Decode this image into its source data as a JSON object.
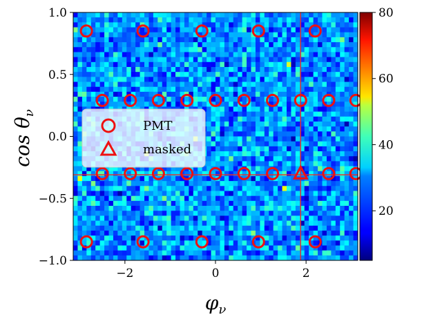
{
  "chart_data": {
    "type": "heatmap",
    "title": "",
    "xlabel": "φ_ν",
    "ylabel": "cos θ_ν",
    "xlabel_main": "φ",
    "xlabel_sub": "ν",
    "ylabel_main": "cos θ",
    "ylabel_sub": "ν",
    "xlim": [
      -3.14159,
      3.14159
    ],
    "ylim": [
      -1.0,
      1.0
    ],
    "xticks": [
      -2,
      0,
      2
    ],
    "xtick_labels": [
      "−2",
      "0",
      "2"
    ],
    "yticks": [
      1.0,
      0.5,
      0.0,
      -0.5,
      -1.0
    ],
    "ytick_labels": [
      "1.0",
      "0.5",
      "0.0",
      "−0.5",
      "−1.0"
    ],
    "colorbar": {
      "range": [
        5,
        80
      ],
      "ticks": [
        20,
        40,
        60,
        80
      ],
      "tick_labels": [
        "20",
        "40",
        "60",
        "80"
      ],
      "colormap": "jet"
    },
    "heatmap_typical_value": 25,
    "grid": false,
    "legend": {
      "placement": "center-left",
      "entries": [
        {
          "label": "PMT",
          "marker": "circle"
        },
        {
          "label": "masked",
          "marker": "triangle"
        }
      ]
    },
    "series": [
      {
        "name": "PMT",
        "marker": "circle",
        "color": "#ee1111",
        "points": [
          [
            -2.85,
            0.85
          ],
          [
            -1.6,
            0.85
          ],
          [
            -0.3,
            0.85
          ],
          [
            0.95,
            0.85
          ],
          [
            2.2,
            0.85
          ],
          [
            -2.5,
            0.29
          ],
          [
            -1.88,
            0.29
          ],
          [
            -1.26,
            0.29
          ],
          [
            -0.63,
            0.29
          ],
          [
            0.0,
            0.29
          ],
          [
            0.63,
            0.29
          ],
          [
            1.26,
            0.29
          ],
          [
            1.88,
            0.29
          ],
          [
            2.5,
            0.29
          ],
          [
            3.1,
            0.29
          ],
          [
            -2.5,
            -0.3
          ],
          [
            -1.88,
            -0.3
          ],
          [
            -1.26,
            -0.3
          ],
          [
            -0.63,
            -0.3
          ],
          [
            0.0,
            -0.3
          ],
          [
            0.63,
            -0.3
          ],
          [
            1.26,
            -0.3
          ],
          [
            2.5,
            -0.3
          ],
          [
            3.1,
            -0.3
          ],
          [
            -2.85,
            -0.85
          ],
          [
            -1.6,
            -0.85
          ],
          [
            -0.3,
            -0.85
          ],
          [
            0.95,
            -0.85
          ],
          [
            2.2,
            -0.85
          ]
        ]
      },
      {
        "name": "masked",
        "marker": "triangle",
        "color": "#ee1111",
        "points": [
          [
            1.88,
            -0.3
          ]
        ]
      }
    ],
    "reference_lines": {
      "vertical_x": 1.88,
      "horizontal_y": -0.31,
      "color": "#e03030"
    }
  }
}
